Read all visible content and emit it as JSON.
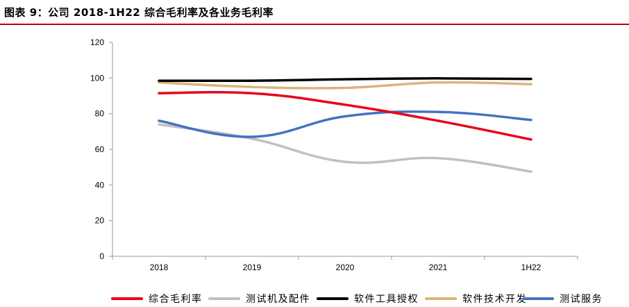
{
  "figure": {
    "title": "图表 9：公司 2018-1H22 综合毛利率及各业务毛利率",
    "accent_color": "#c00000"
  },
  "chart_data": {
    "type": "line",
    "title": "",
    "xlabel": "",
    "ylabel": "",
    "categories": [
      "2018",
      "2019",
      "2020",
      "2021",
      "1H22"
    ],
    "ylim": [
      0,
      120
    ],
    "yticks": [
      0,
      20,
      40,
      60,
      80,
      100,
      120
    ],
    "grid": false,
    "legend_position": "bottom",
    "series": [
      {
        "name": "综合毛利率",
        "color": "#e8001c",
        "values": [
          91.5,
          91.5,
          85,
          76,
          65.5
        ]
      },
      {
        "name": "测试机及配件",
        "color": "#c0c0c0",
        "values": [
          74,
          66,
          53,
          55,
          47.5
        ]
      },
      {
        "name": "软件工具授权",
        "color": "#000000",
        "values": [
          98.5,
          98.5,
          99.3,
          99.8,
          99.5
        ]
      },
      {
        "name": "软件技术开发",
        "color": "#dcb47a",
        "values": [
          97.5,
          95,
          94.5,
          97.5,
          96.5
        ]
      },
      {
        "name": "测试服务",
        "color": "#4472c4",
        "values": [
          76,
          67,
          78.5,
          81,
          76.5
        ]
      }
    ]
  }
}
